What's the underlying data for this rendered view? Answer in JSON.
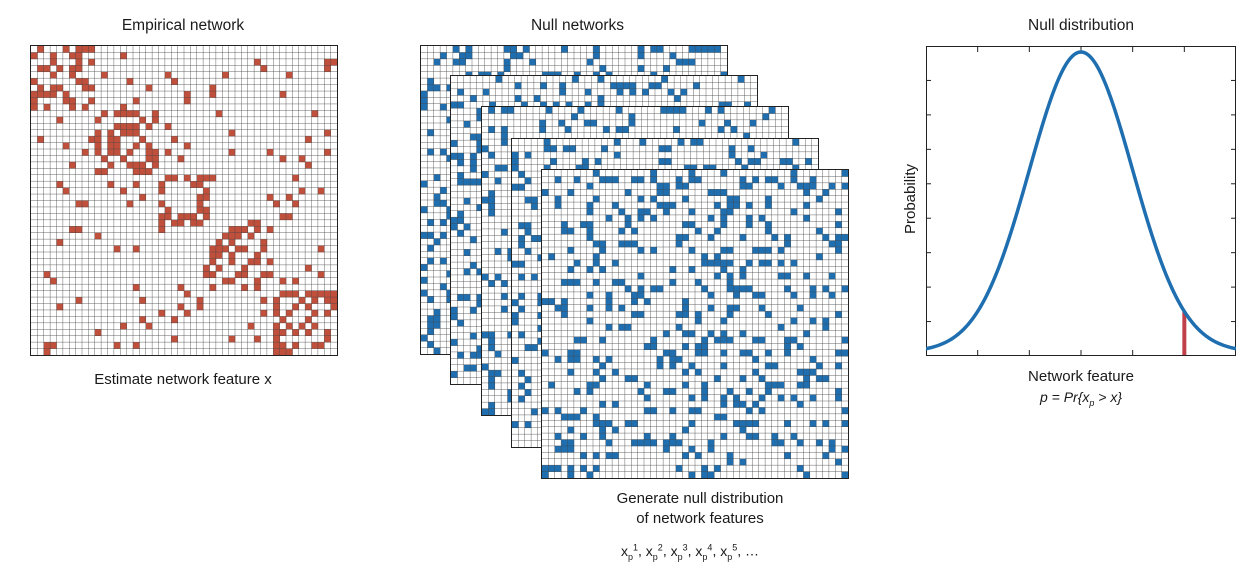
{
  "empirical": {
    "title": "Empirical network",
    "caption": "Estimate network feature x",
    "fill_color": "#c0503c",
    "grid_n": 48
  },
  "null": {
    "title": "Null networks",
    "caption_line1": "Generate null distribution",
    "caption_line2": "of network features",
    "formula_base": "x",
    "formula_sub": "p",
    "formula_sups": [
      "1",
      "2",
      "3",
      "4",
      "5"
    ],
    "formula_tail": "…",
    "fill_color": "#1f6fb0",
    "stack_count": 5,
    "grid_n": 48
  },
  "distribution": {
    "title": "Null distribution",
    "xlabel": "Network feature",
    "pformula": "p = Pr{x_p > x}",
    "ylabel": "Probability",
    "curve_color": "#1f6fb0",
    "marker_color": "#c0404a"
  },
  "chart_data": {
    "type": "line",
    "title": "Null distribution",
    "xlabel": "Network feature",
    "ylabel": "Probability",
    "xlim": [
      -3,
      3
    ],
    "x_ticks": [
      -3,
      -2,
      -1,
      0,
      1,
      2,
      3
    ],
    "series": [
      {
        "values_fn": "gaussian",
        "mean": 0,
        "sd": 1
      }
    ],
    "observed_marker_x": 2.0
  }
}
